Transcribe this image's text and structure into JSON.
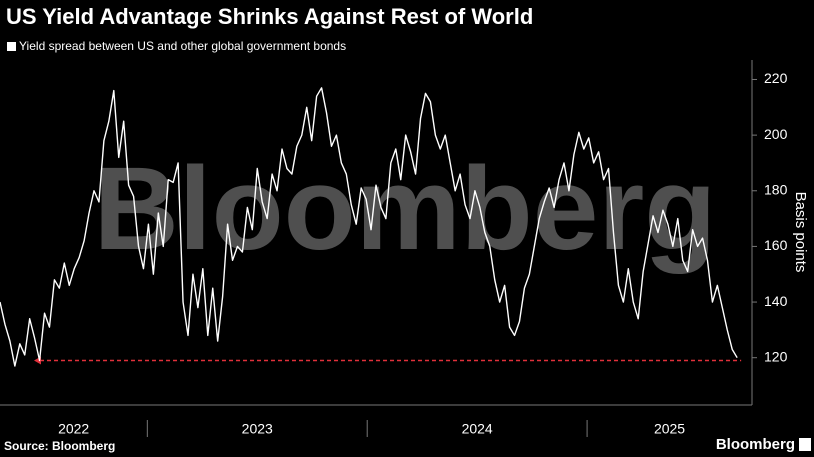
{
  "chart_data": {
    "type": "line",
    "title": "US Yield Advantage Shrinks Against Rest of World",
    "ylabel": "Basis points",
    "source": "Source: Bloomberg",
    "logo": "Bloomberg",
    "watermark": "Bloomberg",
    "xlim": [
      2022.33,
      2025.75
    ],
    "xticks": [
      {
        "value": 2022,
        "label": "2022"
      },
      {
        "value": 2023,
        "label": "2023"
      },
      {
        "value": 2024,
        "label": "2024"
      },
      {
        "value": 2025,
        "label": "2025"
      }
    ],
    "ylim": [
      103,
      227
    ],
    "yticks": [
      120,
      140,
      160,
      180,
      200,
      220
    ],
    "reference_line": {
      "value": 119,
      "color": "#e0303b"
    },
    "x": [
      2022.33,
      2022.3525,
      2022.375,
      2022.3975,
      2022.42,
      2022.4425,
      2022.465,
      2022.4875,
      2022.51,
      2022.5325,
      2022.555,
      2022.5775,
      2022.6,
      2022.6225,
      2022.645,
      2022.6675,
      2022.69,
      2022.7125,
      2022.735,
      2022.7575,
      2022.78,
      2022.8025,
      2022.825,
      2022.8475,
      2022.87,
      2022.8925,
      2022.915,
      2022.9375,
      2022.96,
      2022.9825,
      2023.005,
      2023.0275,
      2023.05,
      2023.0725,
      2023.095,
      2023.1175,
      2023.14,
      2023.1625,
      2023.185,
      2023.2075,
      2023.23,
      2023.2525,
      2023.275,
      2023.2975,
      2023.32,
      2023.3425,
      2023.365,
      2023.3875,
      2023.41,
      2023.4325,
      2023.455,
      2023.4775,
      2023.5,
      2023.5225,
      2023.545,
      2023.5675,
      2023.59,
      2023.6125,
      2023.635,
      2023.6575,
      2023.68,
      2023.7025,
      2023.725,
      2023.7475,
      2023.77,
      2023.7925,
      2023.815,
      2023.8375,
      2023.86,
      2023.8825,
      2023.905,
      2023.9275,
      2023.95,
      2023.9725,
      2023.995,
      2024.0175,
      2024.04,
      2024.0625,
      2024.085,
      2024.1075,
      2024.13,
      2024.1525,
      2024.175,
      2024.1975,
      2024.22,
      2024.2425,
      2024.265,
      2024.2875,
      2024.31,
      2024.3325,
      2024.355,
      2024.3775,
      2024.4,
      2024.4225,
      2024.445,
      2024.4675,
      2024.49,
      2024.5125,
      2024.535,
      2024.5575,
      2024.58,
      2024.6025,
      2024.625,
      2024.6475,
      2024.67,
      2024.6925,
      2024.715,
      2024.7375,
      2024.76,
      2024.7825,
      2024.805,
      2024.8275,
      2024.85,
      2024.8725,
      2024.895,
      2024.9175,
      2024.94,
      2024.9625,
      2024.985,
      2025.0075,
      2025.03,
      2025.0525,
      2025.075,
      2025.0975,
      2025.12,
      2025.1425,
      2025.165,
      2025.1875,
      2025.21,
      2025.2325,
      2025.255,
      2025.2775,
      2025.3,
      2025.3225,
      2025.345,
      2025.3675,
      2025.39,
      2025.4125,
      2025.435,
      2025.4575,
      2025.48,
      2025.5025,
      2025.525,
      2025.5475,
      2025.57,
      2025.5925,
      2025.615,
      2025.6375,
      2025.66,
      2025.6825
    ],
    "series": [
      {
        "name": "Yield spread between US and other global government bonds",
        "color": "#ffffff",
        "values": [
          140,
          132,
          126,
          117,
          125,
          121,
          134,
          127,
          119,
          136,
          131,
          148,
          145,
          154,
          146,
          152,
          156,
          162,
          172,
          180,
          176,
          198,
          205,
          216,
          192,
          205,
          182,
          178,
          160,
          152,
          168,
          150,
          172,
          160,
          184,
          183,
          190,
          140,
          128,
          150,
          138,
          152,
          128,
          145,
          126,
          142,
          168,
          155,
          160,
          158,
          174,
          166,
          188,
          176,
          170,
          186,
          180,
          195,
          188,
          186,
          196,
          200,
          210,
          198,
          214,
          217,
          208,
          196,
          200,
          190,
          186,
          175,
          168,
          181,
          177,
          166,
          182,
          174,
          170,
          190,
          195,
          184,
          200,
          194,
          186,
          206,
          215,
          212,
          200,
          195,
          200,
          190,
          180,
          186,
          175,
          170,
          180,
          174,
          165,
          160,
          148,
          140,
          146,
          131,
          128,
          133,
          145,
          150,
          160,
          170,
          176,
          181,
          174,
          184,
          190,
          180,
          193,
          201,
          195,
          199,
          190,
          194,
          184,
          188,
          165,
          146,
          140,
          152,
          140,
          134,
          151,
          161,
          171,
          165,
          173,
          168,
          160,
          170,
          155,
          151,
          166,
          160,
          163,
          155,
          140,
          146,
          138,
          130,
          123,
          120
        ]
      }
    ]
  }
}
